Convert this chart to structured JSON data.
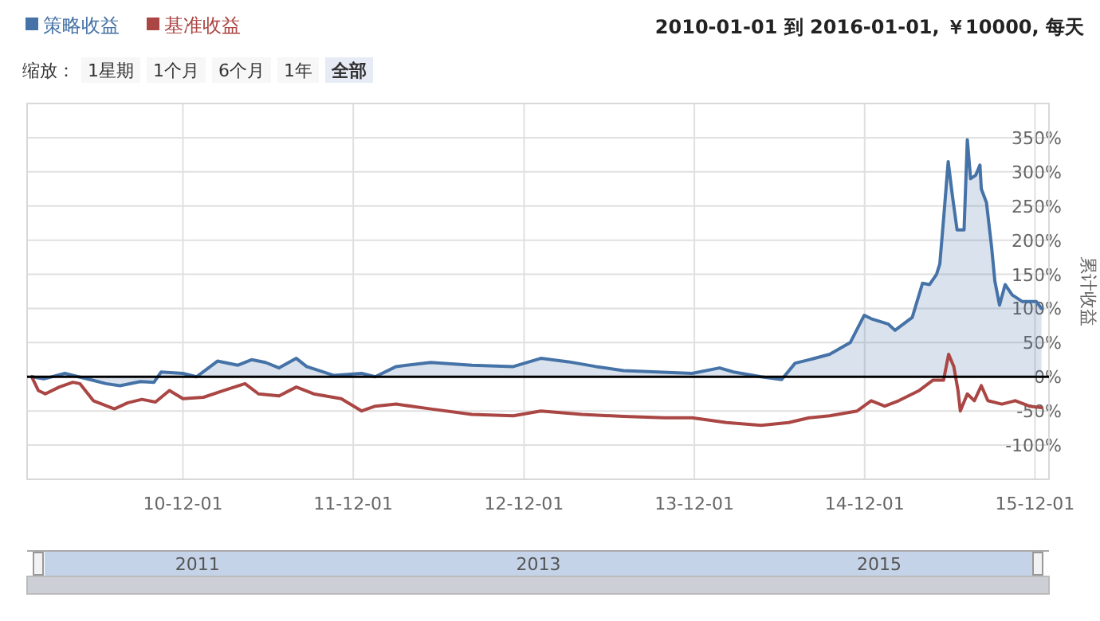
{
  "chart_data": {
    "type": "line",
    "subtitle": "2010-01-01 到 2016-01-01, ￥10000, 每天",
    "ylabel": "累计收益",
    "legend": "top left",
    "grid": true,
    "annotations": [
      "缩放：",
      "1星期",
      "1个月",
      "6个月",
      "1年",
      "全部"
    ],
    "xlim": [
      "2010-01-01",
      "2015-12-31"
    ],
    "xticks": [
      {
        "value": "2010-12-01",
        "label": "10-12-01"
      },
      {
        "value": "2011-12-01",
        "label": "11-12-01"
      },
      {
        "value": "2012-12-01",
        "label": "12-12-01"
      },
      {
        "value": "2013-12-01",
        "label": "13-12-01"
      },
      {
        "value": "2014-12-01",
        "label": "14-12-01"
      },
      {
        "value": "2015-12-01",
        "label": "15-12-01"
      }
    ],
    "x2lim": [
      "2010-01-01",
      "2015-12-31"
    ],
    "x2ticks": [
      {
        "value": "2011-01-01",
        "label": "2011"
      },
      {
        "value": "2013-01-01",
        "label": "2013"
      },
      {
        "value": "2015-01-01",
        "label": "2015"
      }
    ],
    "ylim": [
      -150,
      400
    ],
    "yticks": [
      {
        "value": -150,
        "label": null
      },
      {
        "value": -100,
        "label": "-100%"
      },
      {
        "value": -50,
        "label": "-50%"
      },
      {
        "value": 0,
        "label": "0%"
      },
      {
        "value": 50,
        "label": "50%"
      },
      {
        "value": 100,
        "label": "100%"
      },
      {
        "value": 150,
        "label": "150%"
      },
      {
        "value": 200,
        "label": "200%"
      },
      {
        "value": 250,
        "label": "250%"
      },
      {
        "value": 300,
        "label": "300%"
      },
      {
        "value": 350,
        "label": "350%"
      },
      {
        "value": 400,
        "label": null
      }
    ],
    "ref_lines": [
      {
        "axis": "y",
        "value": 0,
        "color": "#000000"
      }
    ],
    "series": [
      {
        "name": "策略收益",
        "type": "area",
        "color": "#4572a7",
        "x": [
          "2010-01-11",
          "2010-02-06",
          "2010-03-23",
          "2010-04-21",
          "2010-05-21",
          "2010-06-19",
          "2010-07-19",
          "2010-09-01",
          "2010-09-30",
          "2010-10-15",
          "2010-12-01",
          "2010-12-30",
          "2011-02-13",
          "2011-03-29",
          "2011-04-27",
          "2011-05-27",
          "2011-06-25",
          "2011-08-01",
          "2011-08-23",
          "2011-10-21",
          "2011-12-19",
          "2012-01-17",
          "2012-03-02",
          "2012-05-15",
          "2012-08-11",
          "2012-11-08",
          "2013-01-06",
          "2013-03-06",
          "2013-05-04",
          "2013-07-02",
          "2013-09-14",
          "2013-11-26",
          "2014-01-24",
          "2014-02-23",
          "2014-04-23",
          "2014-06-06",
          "2014-07-05",
          "2014-08-04",
          "2014-09-17",
          "2014-10-31",
          "2014-11-30",
          "2014-12-15",
          "2015-01-21",
          "2015-02-04",
          "2015-03-13",
          "2015-04-04",
          "2015-04-19",
          "2015-05-04",
          "2015-05-11",
          "2015-05-19",
          "2015-05-29",
          "2015-06-07",
          "2015-06-17",
          "2015-07-02",
          "2015-07-09",
          "2015-07-16",
          "2015-07-27",
          "2015-08-05",
          "2015-08-08",
          "2015-08-19",
          "2015-08-30",
          "2015-09-06",
          "2015-09-16",
          "2015-09-28",
          "2015-10-13",
          "2015-11-04",
          "2015-12-04",
          "2015-12-15"
        ],
        "values": [
          0,
          -3,
          5,
          0,
          -5,
          -10,
          -13,
          -7,
          -8,
          7,
          5,
          0,
          23,
          17,
          25,
          21,
          13,
          27,
          15,
          2,
          5,
          0,
          15,
          21,
          17,
          15,
          27,
          22,
          15,
          9,
          7,
          5,
          13,
          7,
          0,
          -4,
          20,
          25,
          33,
          50,
          90,
          85,
          77,
          68,
          87,
          137,
          135,
          150,
          165,
          230,
          315,
          265,
          215,
          215,
          347,
          290,
          295,
          310,
          275,
          255,
          190,
          140,
          105,
          135,
          120,
          110,
          110,
          100
        ]
      },
      {
        "name": "基准收益",
        "color": "#aa4643",
        "x": [
          "2010-01-11",
          "2010-01-25",
          "2010-02-09",
          "2010-03-11",
          "2010-04-09",
          "2010-04-24",
          "2010-05-23",
          "2010-07-07",
          "2010-08-05",
          "2010-09-04",
          "2010-10-03",
          "2010-11-02",
          "2010-12-01",
          "2011-01-14",
          "2011-02-27",
          "2011-04-13",
          "2011-05-12",
          "2011-06-25",
          "2011-08-01",
          "2011-09-07",
          "2011-11-05",
          "2011-12-19",
          "2012-01-17",
          "2012-03-02",
          "2012-05-15",
          "2012-08-11",
          "2012-11-08",
          "2013-01-06",
          "2013-04-04",
          "2013-07-02",
          "2013-09-28",
          "2013-11-26",
          "2014-02-08",
          "2014-04-23",
          "2014-06-21",
          "2014-08-04",
          "2014-09-17",
          "2014-11-15",
          "2014-12-15",
          "2015-01-13",
          "2015-02-12",
          "2015-03-28",
          "2015-04-26",
          "2015-05-19",
          "2015-05-30",
          "2015-06-10",
          "2015-06-19",
          "2015-06-24",
          "2015-07-09",
          "2015-07-24",
          "2015-08-08",
          "2015-08-22",
          "2015-09-21",
          "2015-10-20",
          "2015-11-19",
          "2015-12-15"
        ],
        "values": [
          0,
          -20,
          -25,
          -15,
          -8,
          -10,
          -35,
          -47,
          -38,
          -33,
          -37,
          -20,
          -32,
          -30,
          -20,
          -10,
          -25,
          -28,
          -15,
          -25,
          -32,
          -50,
          -43,
          -40,
          -47,
          -55,
          -57,
          -50,
          -55,
          -58,
          -60,
          -60,
          -67,
          -71,
          -67,
          -60,
          -57,
          -50,
          -35,
          -43,
          -35,
          -20,
          -5,
          -5,
          33,
          15,
          -20,
          -50,
          -25,
          -35,
          -13,
          -35,
          -40,
          -35,
          -43,
          -45
        ]
      }
    ]
  }
}
